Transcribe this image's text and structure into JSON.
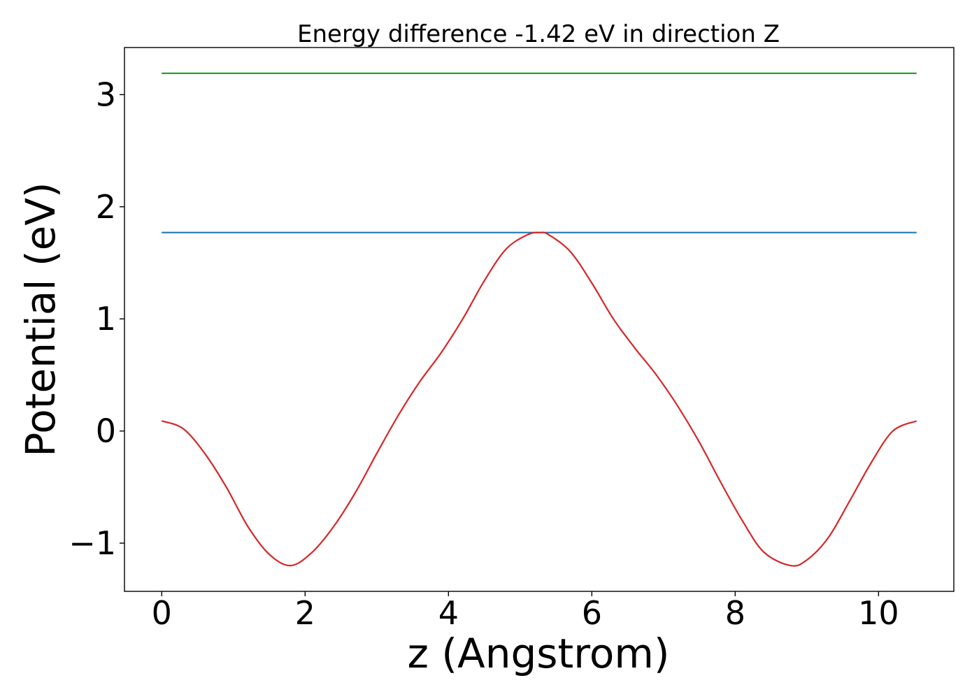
{
  "chart_data": {
    "type": "line",
    "title": "Energy difference -1.42 eV in direction Z",
    "xlabel": "z (Angstrom)",
    "ylabel": "Potential (eV)",
    "xlim": [
      -0.52,
      11.05
    ],
    "ylim": [
      -1.43,
      3.42
    ],
    "xticks": [
      0,
      2,
      4,
      6,
      8,
      10
    ],
    "xtick_labels": [
      "0",
      "2",
      "4",
      "6",
      "8",
      "10"
    ],
    "yticks": [
      -1,
      0,
      1,
      2,
      3
    ],
    "ytick_labels": [
      "−1",
      "0",
      "1",
      "2",
      "3"
    ],
    "grid": false,
    "legend": "none",
    "series": [
      {
        "color": "#d62728",
        "x": [
          0,
          0.3,
          0.6,
          0.9,
          1.2,
          1.5,
          1.8,
          2.1,
          2.4,
          2.7,
          3.0,
          3.3,
          3.6,
          3.9,
          4.2,
          4.5,
          4.8,
          5.1,
          5.28,
          5.4,
          5.7,
          6.0,
          6.3,
          6.6,
          6.9,
          7.2,
          7.5,
          7.8,
          8.1,
          8.4,
          8.77,
          9.0,
          9.3,
          9.6,
          9.9,
          10.2,
          10.53
        ],
        "y": [
          0.09,
          0.02,
          -0.2,
          -0.5,
          -0.85,
          -1.1,
          -1.2,
          -1.08,
          -0.85,
          -0.55,
          -0.2,
          0.14,
          0.44,
          0.7,
          1.0,
          1.34,
          1.62,
          1.75,
          1.77,
          1.75,
          1.6,
          1.32,
          1.0,
          0.74,
          0.5,
          0.22,
          -0.1,
          -0.46,
          -0.8,
          -1.08,
          -1.2,
          -1.15,
          -0.95,
          -0.62,
          -0.28,
          0.0,
          0.09
        ]
      },
      {
        "color": "#1f77b4",
        "x": [
          0,
          10.53
        ],
        "y": [
          1.77,
          1.77
        ]
      },
      {
        "color": "#2ca02c",
        "x": [
          0,
          10.53
        ],
        "y": [
          3.19,
          3.19
        ]
      }
    ]
  }
}
